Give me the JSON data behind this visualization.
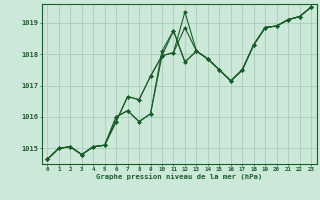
{
  "title": "Graphe pression niveau de la mer (hPa)",
  "background_color": "#cce8d8",
  "grid_color": "#aaccbb",
  "line_color": "#1a5c2a",
  "ylabel_ticks": [
    1015,
    1016,
    1017,
    1018,
    1019
  ],
  "xtick_labels": [
    "0",
    "1",
    "2",
    "3",
    "4",
    "5",
    "6",
    "7",
    "8",
    "9",
    "10",
    "11",
    "12",
    "13",
    "14",
    "15",
    "16",
    "17",
    "18",
    "19",
    "20",
    "21",
    "22",
    "23"
  ],
  "ylim": [
    1014.5,
    1019.6
  ],
  "xlim": [
    -0.5,
    23.5
  ],
  "series": [
    [
      1014.65,
      1015.0,
      1015.05,
      1014.8,
      1015.05,
      1015.1,
      1015.85,
      1016.65,
      1016.55,
      1017.3,
      1017.95,
      1018.05,
      1019.35,
      1018.1,
      1017.85,
      1017.5,
      1017.15,
      1017.5,
      1018.3,
      1018.85,
      1018.9,
      1019.1,
      1019.2,
      1019.5
    ],
    [
      1014.65,
      1015.0,
      1015.05,
      1014.8,
      1015.05,
      1015.1,
      1015.85,
      1016.65,
      1016.55,
      1017.3,
      1017.95,
      1018.05,
      1018.85,
      1018.1,
      1017.85,
      1017.5,
      1017.15,
      1017.5,
      1018.3,
      1018.85,
      1018.9,
      1019.1,
      1019.2,
      1019.5
    ],
    [
      1014.65,
      1015.0,
      1015.05,
      1014.8,
      1015.05,
      1015.1,
      1016.0,
      1016.2,
      1015.85,
      1016.1,
      1017.95,
      1018.75,
      1017.75,
      1018.1,
      1017.85,
      1017.5,
      1017.15,
      1017.5,
      1018.3,
      1018.85,
      1018.9,
      1019.1,
      1019.2,
      1019.5
    ],
    [
      1014.65,
      1015.0,
      1015.05,
      1014.8,
      1015.05,
      1015.1,
      1016.0,
      1016.2,
      1015.85,
      1016.1,
      1018.1,
      1018.75,
      1017.75,
      1018.1,
      1017.85,
      1017.5,
      1017.15,
      1017.5,
      1018.3,
      1018.85,
      1018.9,
      1019.1,
      1019.2,
      1019.5
    ]
  ]
}
